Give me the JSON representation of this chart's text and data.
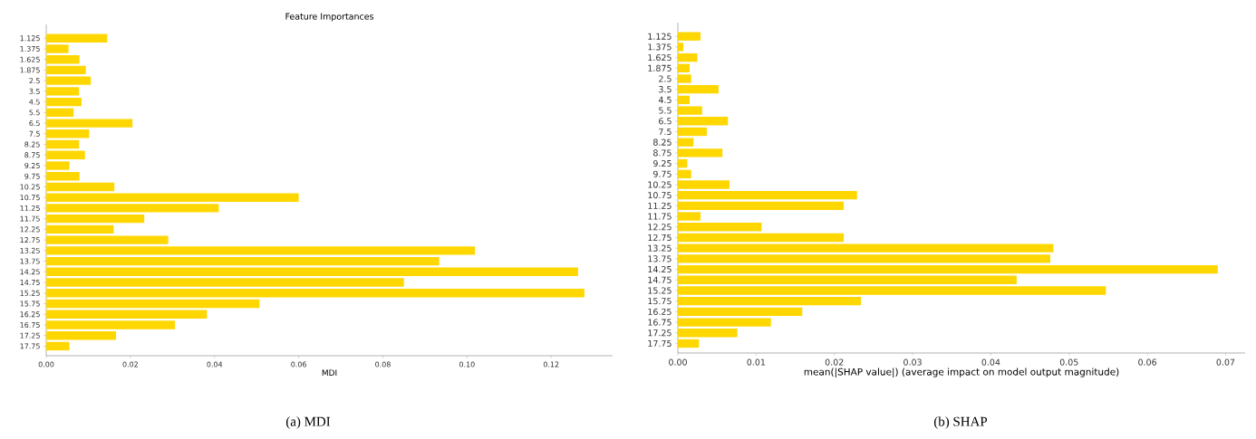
{
  "chart_data": [
    {
      "type": "bar",
      "orientation": "horizontal",
      "title": "Feature Importances",
      "xlabel": "MDI",
      "color": "#ffd700",
      "categories": [
        "1.125",
        "1.375",
        "1.625",
        "1.875",
        "2.5",
        "3.5",
        "4.5",
        "5.5",
        "6.5",
        "7.5",
        "8.25",
        "8.75",
        "9.25",
        "9.75",
        "10.25",
        "10.75",
        "11.25",
        "11.75",
        "12.25",
        "12.75",
        "13.25",
        "13.75",
        "14.25",
        "14.75",
        "15.25",
        "15.75",
        "16.25",
        "16.75",
        "17.25",
        "17.75"
      ],
      "values": [
        0.0145,
        0.0053,
        0.0079,
        0.0094,
        0.0106,
        0.0078,
        0.0084,
        0.0065,
        0.0205,
        0.0102,
        0.0078,
        0.0092,
        0.0055,
        0.0079,
        0.0162,
        0.06,
        0.041,
        0.0233,
        0.016,
        0.029,
        0.1019,
        0.0934,
        0.1264,
        0.085,
        0.1279,
        0.0507,
        0.0382,
        0.0306,
        0.0166,
        0.0055
      ],
      "xlim": [
        0,
        0.1346
      ],
      "xticks": [
        {
          "value": 0,
          "label": "0.00"
        },
        {
          "value": 0.02,
          "label": "0.02"
        },
        {
          "value": 0.04,
          "label": "0.04"
        },
        {
          "value": 0.06,
          "label": "0.06"
        },
        {
          "value": 0.08,
          "label": "0.08"
        },
        {
          "value": 0.1,
          "label": "0.10"
        },
        {
          "value": 0.12,
          "label": "0.12"
        }
      ],
      "annotations": [
        "(a) MDI"
      ]
    },
    {
      "type": "bar",
      "orientation": "horizontal",
      "xlabel": "mean(|SHAP value|) (average impact on model output magnitude)",
      "color": "#ffd700",
      "categories": [
        "1.125",
        "1.375",
        "1.625",
        "1.875",
        "2.5",
        "3.5",
        "4.5",
        "5.5",
        "6.5",
        "7.5",
        "8.25",
        "8.75",
        "9.25",
        "9.75",
        "10.25",
        "10.75",
        "11.25",
        "11.75",
        "12.25",
        "12.75",
        "13.25",
        "13.75",
        "14.25",
        "14.75",
        "15.25",
        "15.75",
        "16.25",
        "16.75",
        "17.25",
        "17.75"
      ],
      "values": [
        0.0029,
        0.0007,
        0.0025,
        0.0015,
        0.0017,
        0.0052,
        0.0015,
        0.0031,
        0.0064,
        0.0037,
        0.002,
        0.0057,
        0.0012,
        0.0017,
        0.0066,
        0.0229,
        0.0212,
        0.0029,
        0.0107,
        0.0212,
        0.048,
        0.0476,
        0.069,
        0.0433,
        0.0547,
        0.0234,
        0.0159,
        0.0119,
        0.0076,
        0.0027
      ],
      "xlim": [
        0,
        0.0725
      ],
      "xticks": [
        {
          "value": 0,
          "label": "0.00"
        },
        {
          "value": 0.01,
          "label": "0.01"
        },
        {
          "value": 0.02,
          "label": "0.02"
        },
        {
          "value": 0.03,
          "label": "0.03"
        },
        {
          "value": 0.04,
          "label": "0.04"
        },
        {
          "value": 0.05,
          "label": "0.05"
        },
        {
          "value": 0.06,
          "label": "0.06"
        },
        {
          "value": 0.07,
          "label": "0.07"
        }
      ],
      "annotations": [
        "(b) SHAP"
      ]
    }
  ]
}
